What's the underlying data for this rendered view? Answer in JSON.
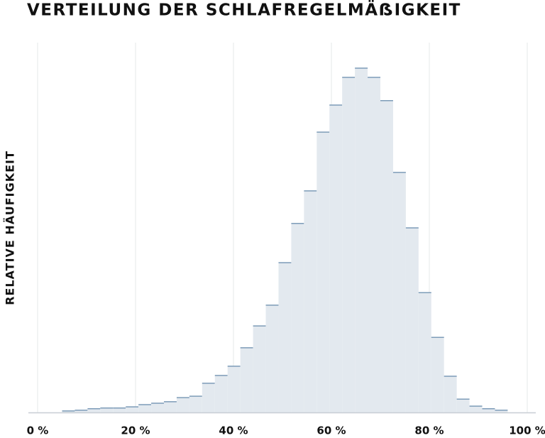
{
  "chart_data": {
    "type": "histogram",
    "title": "VERTEILUNG DER SCHLAFREGELMÄẞIGKEIT",
    "y_label": "RELATIVE HÄUFIGKEIT",
    "bins": [
      5.0,
      7.6,
      10.2,
      12.8,
      15.4,
      18.0,
      20.6,
      23.2,
      25.8,
      28.4,
      31.0,
      33.6,
      36.2,
      38.8,
      41.4,
      44.0,
      46.6,
      49.2,
      51.8,
      54.4,
      57.0,
      59.6,
      62.2,
      64.8,
      67.4,
      70.0,
      72.6,
      75.2,
      77.8,
      80.4,
      83.0,
      85.6,
      88.2,
      90.8,
      93.4,
      96.0
    ],
    "values": [
      0.4,
      0.6,
      1.0,
      1.2,
      1.2,
      1.5,
      2.1,
      2.5,
      2.9,
      4.0,
      4.4,
      7.9,
      10.0,
      12.5,
      17.5,
      23.4,
      29.0,
      40.5,
      51.1,
      59.9,
      75.8,
      83.1,
      90.6,
      93.1,
      90.6,
      84.3,
      64.9,
      49.9,
      32.4,
      20.3,
      9.8,
      3.6,
      1.7,
      1.0,
      0.6
    ],
    "color": "#e3e9ef",
    "edge_color": "#7d9cb8",
    "xlim": [
      0,
      100
    ],
    "xticks": [
      {
        "value": 0,
        "label": "0 %"
      },
      {
        "value": 20,
        "label": "20 %"
      },
      {
        "value": 40,
        "label": "40 %"
      },
      {
        "value": 60,
        "label": "60 %"
      },
      {
        "value": 80,
        "label": "80 %"
      },
      {
        "value": 100,
        "label": "100 %"
      }
    ],
    "ylim": [
      0,
      100
    ],
    "grid": true
  }
}
